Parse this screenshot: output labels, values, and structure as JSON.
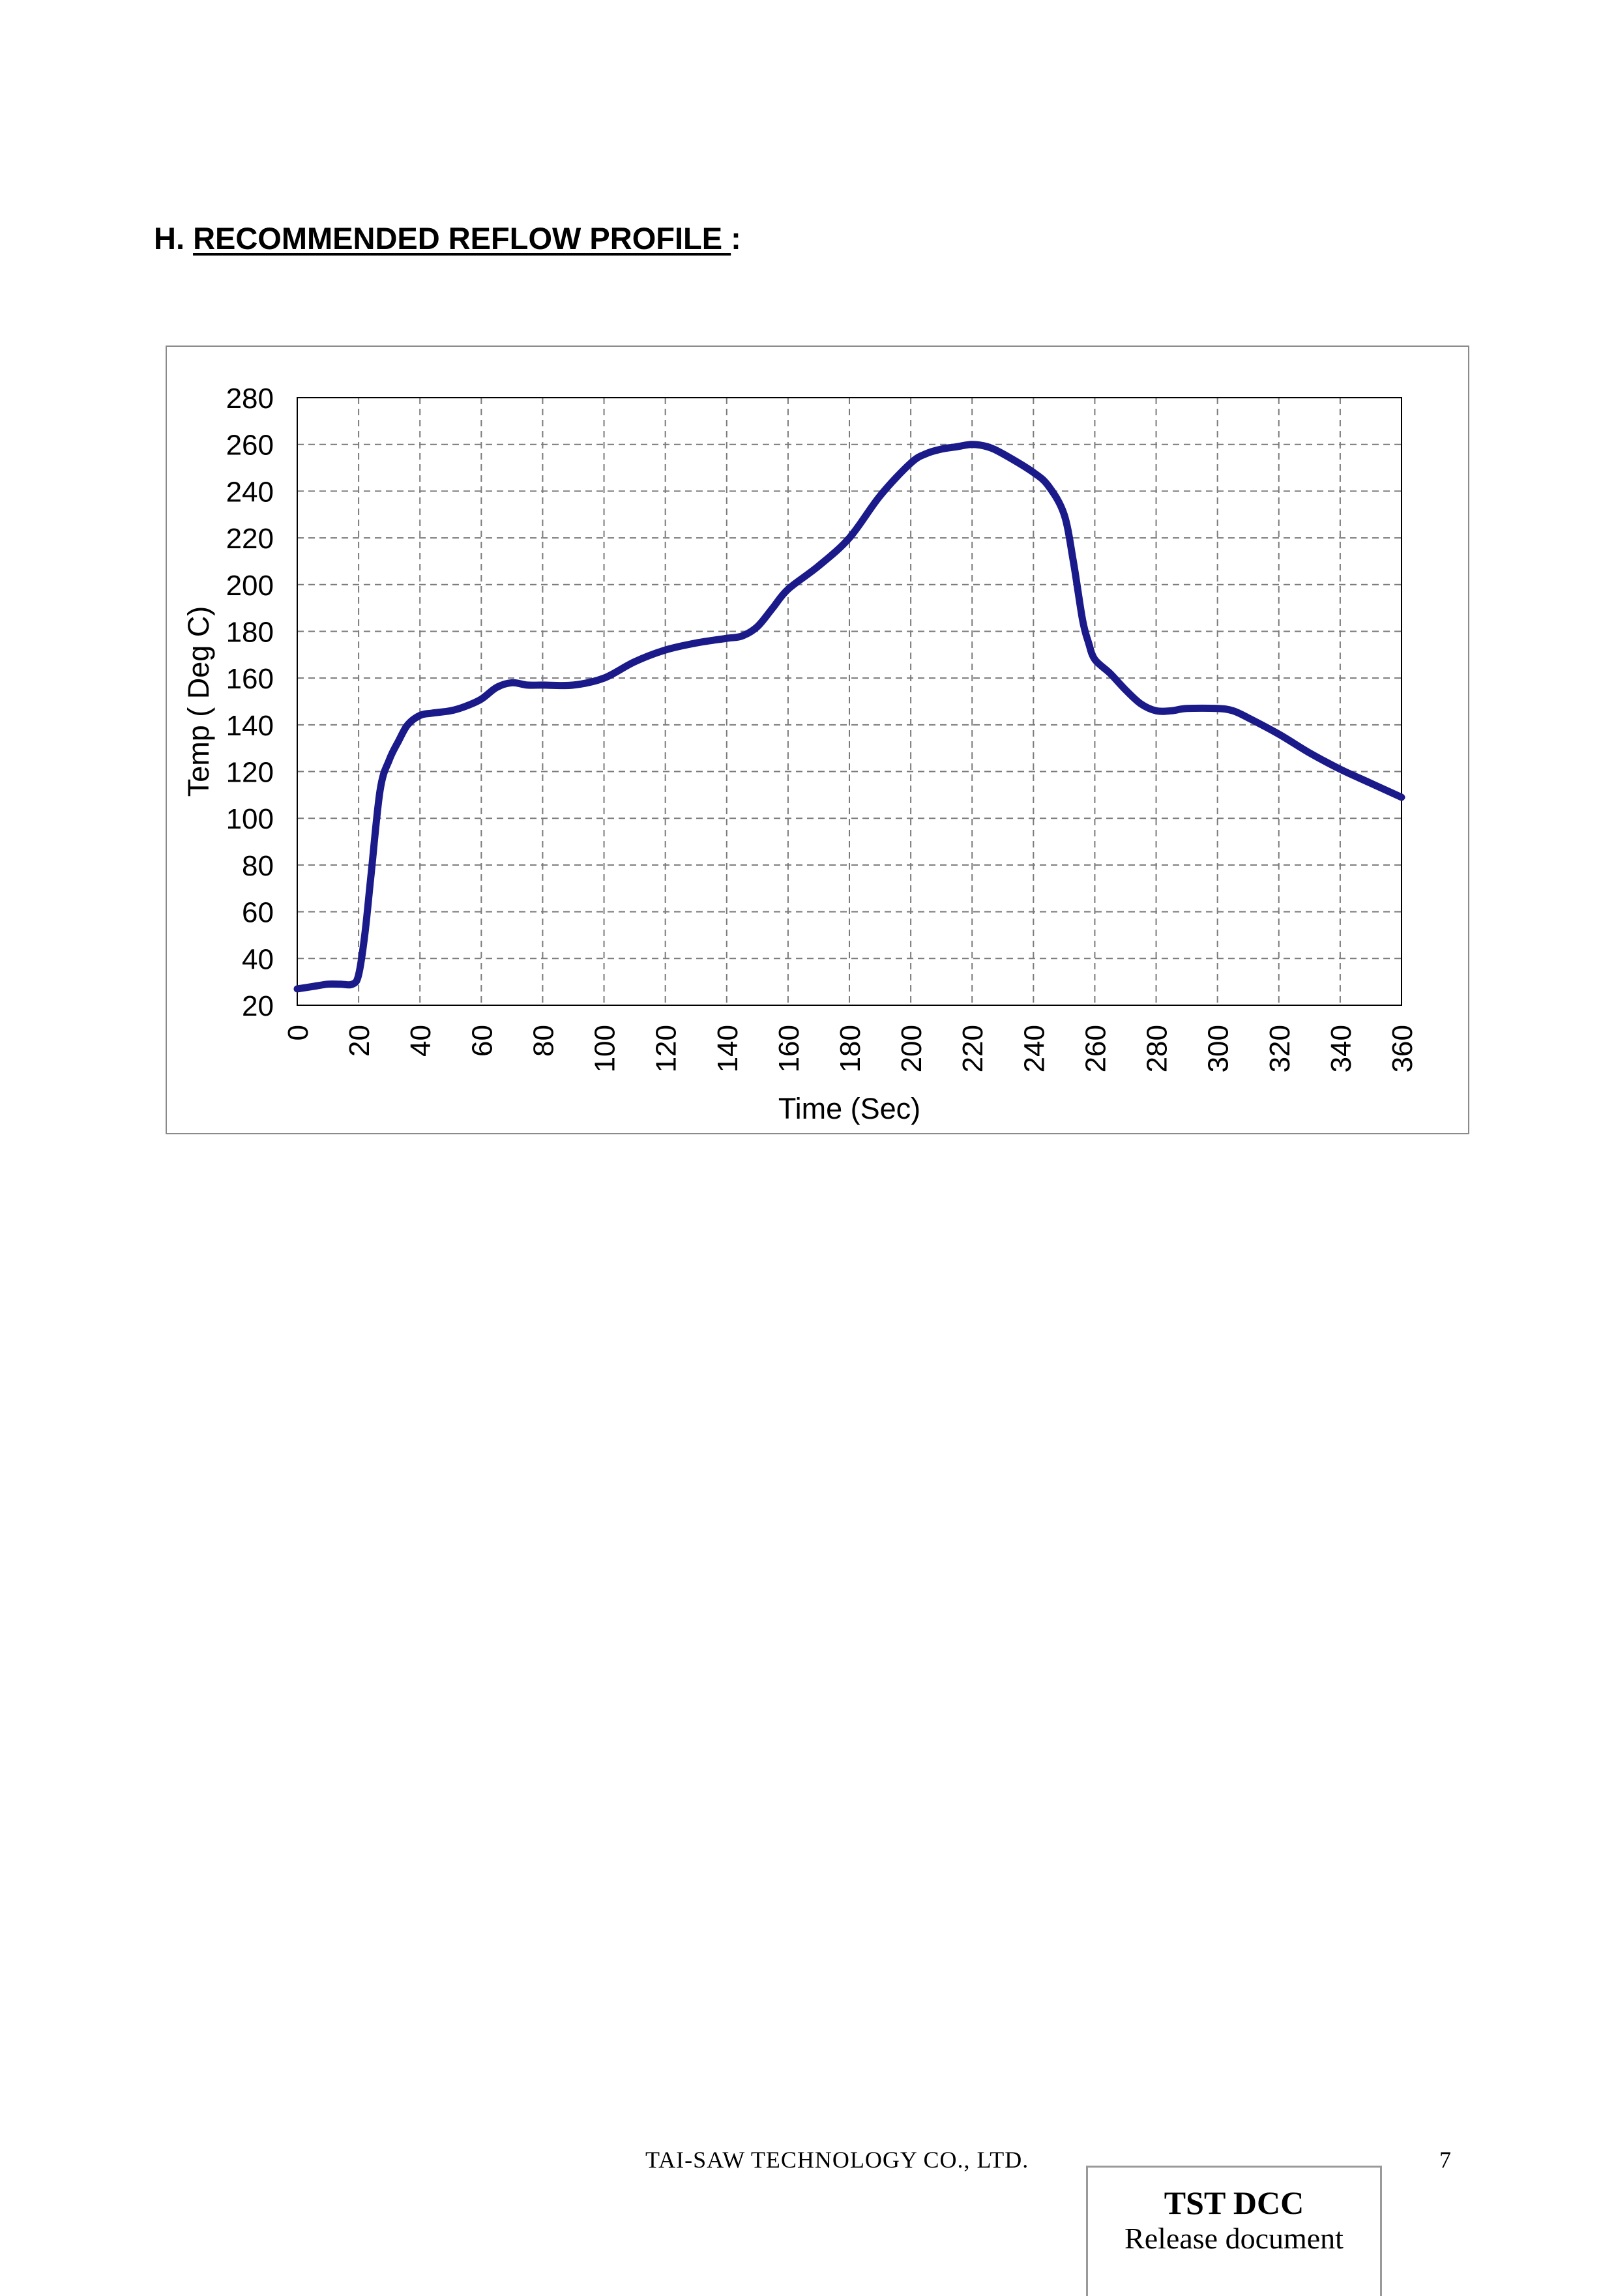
{
  "heading": {
    "prefix": "H.",
    "title": "RECOMMENDED REFLOW PROFILE ",
    "suffix": ":"
  },
  "chart_data": {
    "type": "line",
    "xlabel": "Time (Sec)",
    "ylabel": "Temp ( Deg C)",
    "xlim": [
      0,
      360
    ],
    "ylim": [
      20,
      280
    ],
    "x_ticks": [
      0,
      20,
      40,
      60,
      80,
      100,
      120,
      140,
      160,
      180,
      200,
      220,
      240,
      260,
      280,
      300,
      320,
      340,
      360
    ],
    "y_ticks": [
      20,
      40,
      60,
      80,
      100,
      120,
      140,
      160,
      180,
      200,
      220,
      240,
      260,
      280
    ],
    "grid": true,
    "line_color": "#1a1a8a",
    "series": [
      {
        "x": [
          0,
          5,
          10,
          14,
          18,
          20,
          22,
          24,
          27,
          30,
          33,
          36,
          40,
          44,
          50,
          55,
          60,
          65,
          70,
          75,
          80,
          90,
          100,
          110,
          120,
          130,
          140,
          145,
          150,
          155,
          160,
          170,
          180,
          190,
          200,
          205,
          210,
          215,
          220,
          225,
          230,
          240,
          245,
          250,
          253,
          256,
          258,
          260,
          265,
          270,
          275,
          280,
          285,
          290,
          300,
          305,
          310,
          320,
          330,
          340,
          350,
          360
        ],
        "y": [
          27,
          28,
          29,
          29,
          29,
          33,
          50,
          75,
          112,
          125,
          133,
          140,
          144,
          145,
          146,
          148,
          151,
          156,
          158,
          157,
          157,
          157,
          160,
          167,
          172,
          175,
          177,
          178,
          182,
          190,
          198,
          208,
          220,
          238,
          252,
          256,
          258,
          259,
          260,
          259,
          256,
          248,
          242,
          230,
          210,
          185,
          175,
          168,
          162,
          155,
          149,
          146,
          146,
          147,
          147,
          146,
          143,
          136,
          128,
          121,
          115,
          109
        ]
      }
    ]
  },
  "footer": {
    "company": "TAI-SAW TECHNOLOGY CO., LTD.",
    "page_number": "7"
  },
  "stamp": {
    "title": "TST DCC",
    "subtitle": "Release document"
  }
}
